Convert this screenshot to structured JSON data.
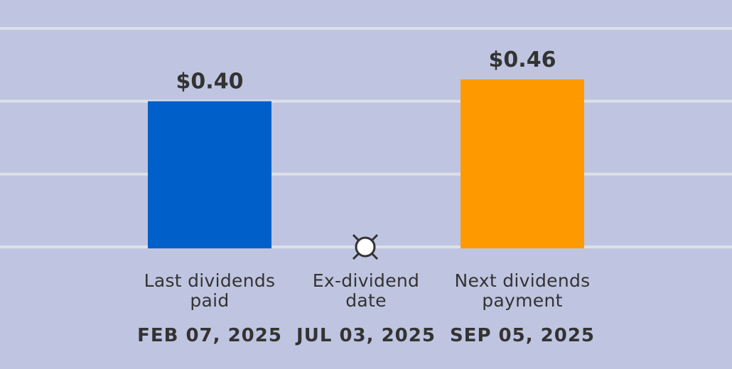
{
  "chart_data": {
    "type": "bar",
    "categories": [
      "Last dividends paid",
      "Ex-dividend date",
      "Next dividends payment"
    ],
    "dates": [
      "FEB 07, 2025",
      "JUL 03, 2025",
      "SEP 05, 2025"
    ],
    "values": [
      0.4,
      null,
      0.46
    ],
    "value_labels": [
      "$0.40",
      null,
      "$0.46"
    ],
    "colors": [
      "#005fc8",
      null,
      "#ff9900"
    ],
    "ylim": [
      0,
      0.6
    ],
    "yticks": [
      0,
      0.2,
      0.4,
      0.6
    ],
    "grid": true
  }
}
